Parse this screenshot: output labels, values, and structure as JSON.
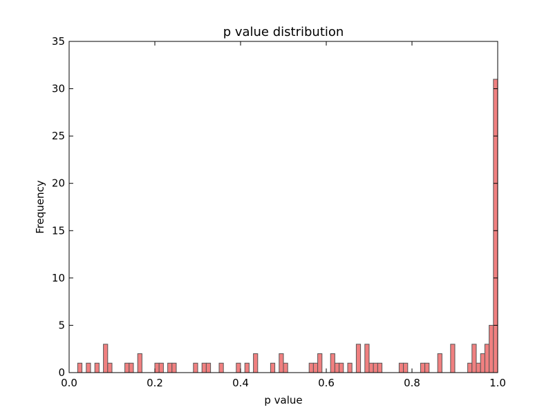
{
  "chart_data": {
    "type": "bar",
    "title": "p value distribution",
    "xlabel": "p value",
    "ylabel": "Frequency",
    "xlim": [
      0.0,
      1.0
    ],
    "ylim": [
      0,
      35
    ],
    "x_ticks": [
      "0.0",
      "0.2",
      "0.4",
      "0.6",
      "0.8",
      "1.0"
    ],
    "x_tick_values": [
      0.0,
      0.2,
      0.4,
      0.6,
      0.8,
      1.0
    ],
    "y_ticks": [
      "0",
      "5",
      "10",
      "15",
      "20",
      "25",
      "30",
      "35"
    ],
    "y_tick_values": [
      0,
      5,
      10,
      15,
      20,
      25,
      30,
      35
    ],
    "bin_width": 0.01,
    "bar_color": "#f08080",
    "edge_color": "#555555",
    "grid": false,
    "bins": [
      {
        "x": 0.02,
        "value": 1
      },
      {
        "x": 0.04,
        "value": 1
      },
      {
        "x": 0.06,
        "value": 1
      },
      {
        "x": 0.08,
        "value": 3
      },
      {
        "x": 0.09,
        "value": 1
      },
      {
        "x": 0.13,
        "value": 1
      },
      {
        "x": 0.14,
        "value": 1
      },
      {
        "x": 0.16,
        "value": 2
      },
      {
        "x": 0.2,
        "value": 1
      },
      {
        "x": 0.21,
        "value": 1
      },
      {
        "x": 0.23,
        "value": 1
      },
      {
        "x": 0.24,
        "value": 1
      },
      {
        "x": 0.29,
        "value": 1
      },
      {
        "x": 0.31,
        "value": 1
      },
      {
        "x": 0.32,
        "value": 1
      },
      {
        "x": 0.35,
        "value": 1
      },
      {
        "x": 0.39,
        "value": 1
      },
      {
        "x": 0.41,
        "value": 1
      },
      {
        "x": 0.43,
        "value": 2
      },
      {
        "x": 0.47,
        "value": 1
      },
      {
        "x": 0.49,
        "value": 2
      },
      {
        "x": 0.5,
        "value": 1
      },
      {
        "x": 0.56,
        "value": 1
      },
      {
        "x": 0.57,
        "value": 1
      },
      {
        "x": 0.58,
        "value": 2
      },
      {
        "x": 0.61,
        "value": 2
      },
      {
        "x": 0.62,
        "value": 1
      },
      {
        "x": 0.63,
        "value": 1
      },
      {
        "x": 0.65,
        "value": 1
      },
      {
        "x": 0.67,
        "value": 3
      },
      {
        "x": 0.69,
        "value": 3
      },
      {
        "x": 0.7,
        "value": 1
      },
      {
        "x": 0.71,
        "value": 1
      },
      {
        "x": 0.72,
        "value": 1
      },
      {
        "x": 0.77,
        "value": 1
      },
      {
        "x": 0.78,
        "value": 1
      },
      {
        "x": 0.82,
        "value": 1
      },
      {
        "x": 0.83,
        "value": 1
      },
      {
        "x": 0.86,
        "value": 2
      },
      {
        "x": 0.89,
        "value": 3
      },
      {
        "x": 0.93,
        "value": 1
      },
      {
        "x": 0.94,
        "value": 3
      },
      {
        "x": 0.95,
        "value": 1
      },
      {
        "x": 0.96,
        "value": 2
      },
      {
        "x": 0.97,
        "value": 3
      },
      {
        "x": 0.98,
        "value": 5
      },
      {
        "x": 0.99,
        "value": 31
      }
    ]
  }
}
